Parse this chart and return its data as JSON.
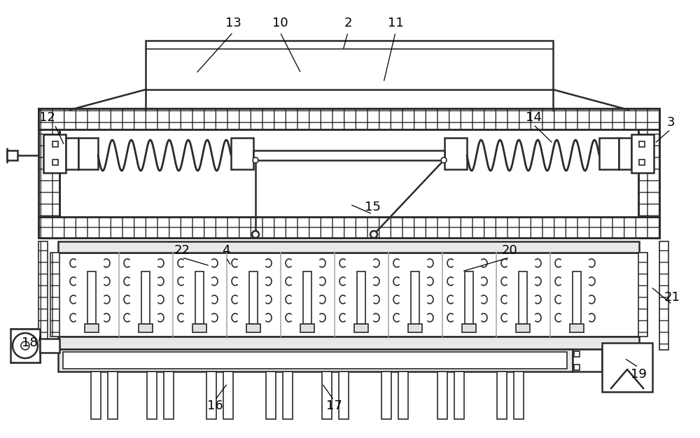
{
  "bg_color": "#ffffff",
  "line_color": "#2a2a2a",
  "figsize": [
    10.0,
    6.26
  ],
  "dpi": 100,
  "labels": [
    [
      "2",
      497,
      33
    ],
    [
      "3",
      958,
      175
    ],
    [
      "4",
      323,
      358
    ],
    [
      "10",
      400,
      33
    ],
    [
      "11",
      565,
      33
    ],
    [
      "12",
      67,
      168
    ],
    [
      "13",
      333,
      33
    ],
    [
      "14",
      762,
      168
    ],
    [
      "15",
      532,
      296
    ],
    [
      "16",
      307,
      580
    ],
    [
      "17",
      477,
      580
    ],
    [
      "18",
      42,
      490
    ],
    [
      "19",
      912,
      535
    ],
    [
      "20",
      728,
      358
    ],
    [
      "21",
      960,
      425
    ],
    [
      "22",
      260,
      358
    ]
  ],
  "leader_lines": [
    [
      "2",
      497,
      46,
      490,
      72
    ],
    [
      "3",
      958,
      185,
      935,
      205
    ],
    [
      "4",
      323,
      368,
      330,
      380
    ],
    [
      "10",
      400,
      46,
      430,
      105
    ],
    [
      "11",
      565,
      46,
      548,
      118
    ],
    [
      "12",
      78,
      178,
      92,
      208
    ],
    [
      "13",
      333,
      46,
      280,
      105
    ],
    [
      "14",
      762,
      178,
      790,
      205
    ],
    [
      "15",
      532,
      306,
      500,
      292
    ],
    [
      "16",
      307,
      572,
      325,
      548
    ],
    [
      "17",
      477,
      572,
      460,
      548
    ],
    [
      "18",
      55,
      490,
      58,
      478
    ],
    [
      "19",
      912,
      525,
      892,
      512
    ],
    [
      "20",
      728,
      368,
      660,
      388
    ],
    [
      "21",
      960,
      435,
      930,
      410
    ],
    [
      "22",
      260,
      368,
      300,
      380
    ]
  ]
}
